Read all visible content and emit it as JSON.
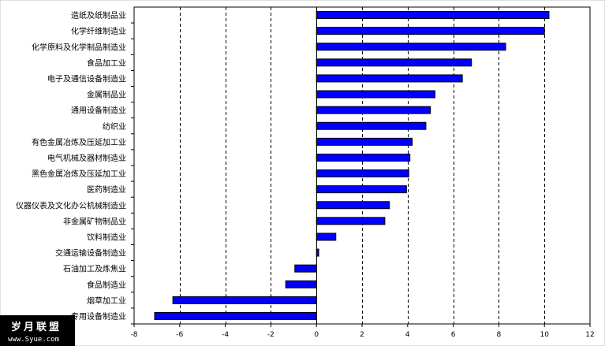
{
  "chart_data": {
    "type": "bar",
    "orientation": "horizontal",
    "title": "",
    "xlabel": "",
    "ylabel": "",
    "xlim": [
      -8,
      12
    ],
    "x_ticks": [
      "-8",
      "-6",
      "-4",
      "-2",
      "0",
      "2",
      "4",
      "6",
      "8",
      "10",
      "12"
    ],
    "grid": "vertical-dashed",
    "bar_color": "#0000ff",
    "categories": [
      "造纸及纸制品业",
      "化学纤维制造业",
      "化学原料及化学制品制造业",
      "食品加工业",
      "电子及通信设备制造业",
      "金属制品业",
      "通用设备制造业",
      "纺织业",
      "有色金属冶炼及压延加工业",
      "电气机械及器材制造业",
      "黑色金属冶炼及压延加工业",
      "医药制造业",
      "仪器仪表及文化办公机械制造业",
      "非金属矿物制品业",
      "饮料制造业",
      "交通运输设备制造业",
      "石油加工及炼焦业",
      "食品制造业",
      "烟草加工业",
      "专用设备制造业"
    ],
    "values": [
      10.2,
      10.0,
      8.3,
      6.8,
      6.4,
      5.2,
      5.0,
      4.8,
      4.2,
      4.1,
      4.05,
      3.95,
      3.2,
      3.0,
      0.85,
      0.1,
      -0.95,
      -1.35,
      -6.3,
      -7.1
    ]
  },
  "watermark": {
    "cn": "岁月联盟",
    "url": "www.Syue.com"
  }
}
